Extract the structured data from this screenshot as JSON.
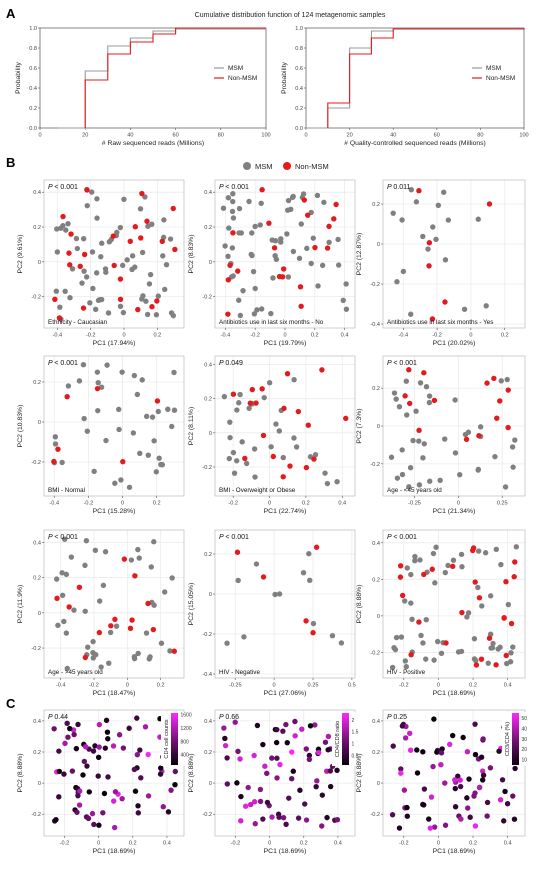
{
  "panel_labels": {
    "a": "A",
    "b": "B",
    "c": "C"
  },
  "colors": {
    "msm": "#808080",
    "non_msm": "#e41a1c",
    "grid": "#ebebeb",
    "frame": "#b0b0b0",
    "step_msm": "#999999",
    "step_non": "#e41a1c"
  },
  "section_a": {
    "title": "Cumulative distribution function of 124 metagenomic samples",
    "legend": [
      "MSM",
      "Non-MSM"
    ]
  },
  "section_b": {
    "legend": [
      "MSM",
      "Non-MSM"
    ]
  },
  "chart_data": [
    {
      "type": "line",
      "id": "a1",
      "xlabel": "# Raw sequenced reads (Millions)",
      "ylabel": "Probability",
      "xlim": [
        0,
        100
      ],
      "ylim": [
        0,
        1
      ],
      "xticks": [
        0,
        20,
        40,
        60,
        80,
        100
      ],
      "yticks": [
        0.0,
        0.2,
        0.4,
        0.6,
        0.8,
        1.0
      ],
      "series": [
        {
          "name": "MSM",
          "step": [
            [
              8,
              0
            ],
            [
              20,
              0.57
            ],
            [
              30,
              0.82
            ],
            [
              40,
              0.9
            ],
            [
              50,
              0.97
            ],
            [
              60,
              0.99
            ],
            [
              100,
              1
            ]
          ]
        },
        {
          "name": "Non-MSM",
          "step": [
            [
              20,
              0.48
            ],
            [
              30,
              0.74
            ],
            [
              40,
              0.86
            ],
            [
              50,
              0.94
            ],
            [
              60,
              1
            ],
            [
              100,
              1
            ]
          ]
        }
      ]
    },
    {
      "type": "line",
      "id": "a2",
      "xlabel": "# Quality-controlled sequenced reads (Millions)",
      "ylabel": "Probability",
      "xlim": [
        0,
        100
      ],
      "ylim": [
        0,
        1
      ],
      "xticks": [
        0,
        20,
        40,
        60,
        80,
        100
      ],
      "yticks": [
        0.0,
        0.2,
        0.4,
        0.6,
        0.8,
        1.0
      ],
      "series": [
        {
          "name": "MSM",
          "step": [
            [
              0,
              0
            ],
            [
              10,
              0.2
            ],
            [
              20,
              0.8
            ],
            [
              30,
              0.97
            ],
            [
              40,
              0.99
            ],
            [
              100,
              1
            ]
          ]
        },
        {
          "name": "Non-MSM",
          "step": [
            [
              10,
              0.25
            ],
            [
              20,
              0.74
            ],
            [
              30,
              0.9
            ],
            [
              40,
              0.99
            ],
            [
              100,
              1
            ]
          ]
        }
      ]
    },
    {
      "type": "scatter",
      "id": "b1",
      "pvalue": "< 0.001",
      "xlabel": "PC1 (17.94%)",
      "ylabel": "PC2 (9.61%)",
      "xlim": [
        -0.48,
        0.36
      ],
      "ylim": [
        -0.38,
        0.47
      ],
      "xticks": [
        -0.4,
        -0.2,
        0.0,
        0.2
      ],
      "yticks": [
        -0.2,
        0.0,
        0.2,
        0.4
      ],
      "annotation": "Ethnicity - Caucasian",
      "seed": 11,
      "n_gray": 70,
      "n_red": 25
    },
    {
      "type": "scatter",
      "id": "b2",
      "pvalue": "< 0.001",
      "xlabel": "PC1 (19.79%)",
      "ylabel": "PC2 (8.83%)",
      "xlim": [
        -0.47,
        0.47
      ],
      "ylim": [
        -0.38,
        0.47
      ],
      "xticks": [
        -0.4,
        -0.2,
        0.0,
        0.2,
        0.4
      ],
      "yticks": [
        -0.2,
        0.0,
        0.2,
        0.4
      ],
      "annotation": "Antibiotics use in last six months - No",
      "seed": 23,
      "n_gray": 65,
      "n_red": 20
    },
    {
      "type": "scatter",
      "id": "b3",
      "pvalue": "0.011",
      "xlabel": "PC1 (20.02%)",
      "ylabel": "PC2 (12.87%)",
      "xlim": [
        -0.52,
        0.32
      ],
      "ylim": [
        -0.42,
        0.32
      ],
      "xticks": [
        -0.4,
        -0.2,
        0.0,
        0.2
      ],
      "yticks": [
        -0.4,
        -0.2,
        0.0,
        0.2
      ],
      "annotation": "Antibiotics use in last six months - Yes",
      "seed": 37,
      "n_gray": 18,
      "n_red": 6
    },
    {
      "type": "scatter",
      "id": "b4",
      "pvalue": "< 0.001",
      "xlabel": "PC1 (15.28%)",
      "ylabel": "PC2 (10.83%)",
      "xlim": [
        -0.46,
        0.36
      ],
      "ylim": [
        -0.37,
        0.33
      ],
      "xticks": [
        -0.4,
        -0.2,
        0.0,
        0.2
      ],
      "yticks": [
        -0.2,
        0.0,
        0.2
      ],
      "annotation": "BMI - Normal",
      "seed": 41,
      "n_gray": 40,
      "n_red": 6
    },
    {
      "type": "scatter",
      "id": "b5",
      "pvalue": "0.049",
      "xlabel": "PC1 (22.74%)",
      "ylabel": "PC2 (8.11%)",
      "xlim": [
        -0.3,
        0.47
      ],
      "ylim": [
        -0.37,
        0.45
      ],
      "xticks": [
        -0.2,
        0.0,
        0.2,
        0.4
      ],
      "yticks": [
        -0.2,
        0.0,
        0.2,
        0.4
      ],
      "annotation": "BMI - Overweight or Obese",
      "seed": 53,
      "n_gray": 32,
      "n_red": 18
    },
    {
      "type": "scatter",
      "id": "b6",
      "pvalue": "< 0.001",
      "xlabel": "PC1 (21.34%)",
      "ylabel": "PC2 (7.3%)",
      "xlim": [
        -0.43,
        0.38
      ],
      "ylim": [
        -0.37,
        0.37
      ],
      "xticks": [
        -0.25,
        0.0,
        0.25
      ],
      "yticks": [
        -0.2,
        0.0,
        0.2
      ],
      "annotation": "Age - <45 years old",
      "seed": 67,
      "n_gray": 40,
      "n_red": 14
    },
    {
      "type": "scatter",
      "id": "b7",
      "pvalue": "< 0.001",
      "xlabel": "PC1 (18.47%)",
      "ylabel": "PC2 (11.9%)",
      "xlim": [
        -0.5,
        0.34
      ],
      "ylim": [
        -0.37,
        0.47
      ],
      "xticks": [
        -0.4,
        -0.2,
        0.0,
        0.2
      ],
      "yticks": [
        -0.2,
        0.0,
        0.2,
        0.4
      ],
      "annotation": "Age - >45 years old",
      "seed": 79,
      "n_gray": 45,
      "n_red": 14
    },
    {
      "type": "scatter",
      "id": "b8",
      "pvalue": "< 0.001",
      "xlabel": "PC1 (27.06%)",
      "ylabel": "PC2 (15.05%)",
      "xlim": [
        -0.38,
        0.52
      ],
      "ylim": [
        -0.42,
        0.32
      ],
      "xticks": [
        -0.25,
        0.0,
        0.25,
        0.5
      ],
      "yticks": [
        -0.4,
        -0.2,
        0.0,
        0.2
      ],
      "annotation": "HIV - Negative",
      "seed": 83,
      "n_gray": 12,
      "n_red": 5
    },
    {
      "type": "scatter",
      "id": "b9",
      "pvalue": "< 0.001",
      "xlabel": "PC1 (18.69%)",
      "ylabel": "PC2 (8.88%)",
      "xlim": [
        -0.32,
        0.5
      ],
      "ylim": [
        -0.34,
        0.47
      ],
      "xticks": [
        -0.2,
        0.0,
        0.2,
        0.4
      ],
      "yticks": [
        -0.2,
        0.0,
        0.2,
        0.4
      ],
      "annotation": "HIV - Positive",
      "seed": 97,
      "n_gray": 60,
      "n_red": 25
    },
    {
      "type": "scatter",
      "id": "c1",
      "pvalue": "0.44",
      "xlabel": "PC1 (18.69%)",
      "ylabel": "PC2 (8.88%)",
      "xlim": [
        -0.32,
        0.5
      ],
      "ylim": [
        -0.34,
        0.47
      ],
      "xticks": [
        -0.2,
        0.0,
        0.2,
        0.4
      ],
      "yticks": [
        -0.2,
        0.0,
        0.2,
        0.4
      ],
      "colorbar": {
        "title": "CD4 cell counts",
        "ticks": [
          400,
          800,
          1200,
          1600
        ],
        "range": [
          100,
          1650
        ]
      },
      "seed": 101,
      "n": 85
    },
    {
      "type": "scatter",
      "id": "c2",
      "pvalue": "0.66",
      "xlabel": "PC1 (18.69%)",
      "ylabel": "PC2 (8.88%)",
      "xlim": [
        -0.32,
        0.5
      ],
      "ylim": [
        -0.34,
        0.47
      ],
      "xticks": [
        -0.2,
        0.0,
        0.2,
        0.4
      ],
      "yticks": [
        -0.2,
        0.0,
        0.2,
        0.4
      ],
      "colorbar": {
        "title": "CD4/CD8 ratio",
        "ticks": [
          0.5,
          1.0,
          1.5,
          2.0
        ],
        "range": [
          0.1,
          2.3
        ]
      },
      "seed": 103,
      "n": 85
    },
    {
      "type": "scatter",
      "id": "c3",
      "pvalue": "0.25",
      "xlabel": "PC1 (18.69%)",
      "ylabel": "PC2 (8.88%)",
      "xlim": [
        -0.32,
        0.5
      ],
      "ylim": [
        -0.34,
        0.47
      ],
      "xticks": [
        -0.2,
        0.0,
        0.2,
        0.4
      ],
      "yticks": [
        -0.2,
        0.0,
        0.2,
        0.4
      ],
      "colorbar": {
        "title": "CD3/CD4 (%)",
        "ticks": [
          10,
          20,
          30,
          40,
          50
        ],
        "range": [
          5,
          55
        ]
      },
      "seed": 107,
      "n": 85
    }
  ]
}
